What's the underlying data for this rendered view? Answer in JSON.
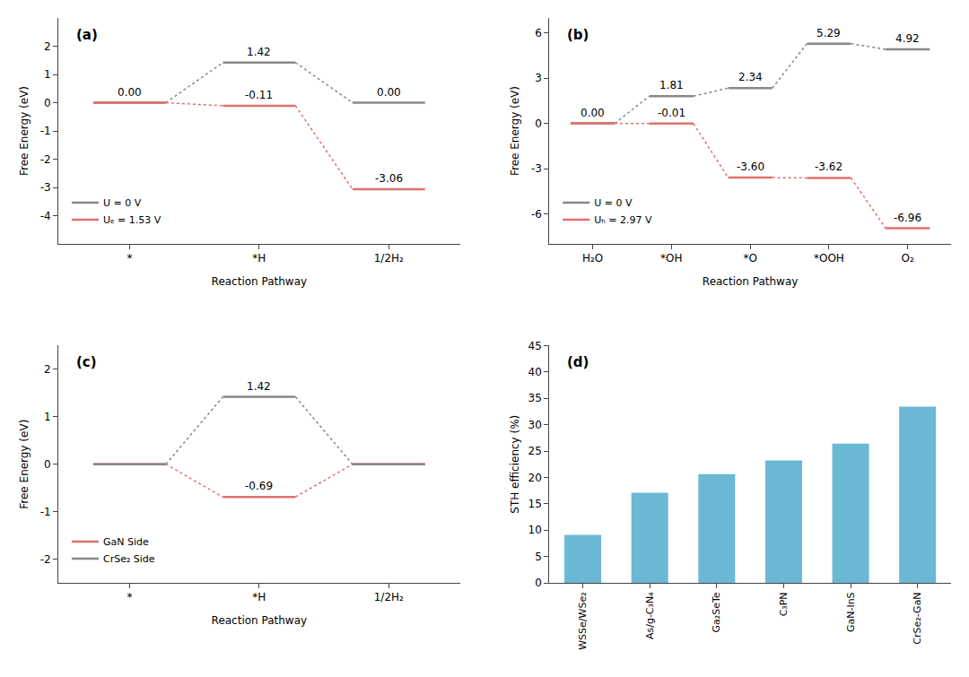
{
  "chart_data": [
    {
      "type": "levels",
      "title": "(a)",
      "xlabel": "Reaction Pathway",
      "ylabel": "Free Energy (eV)",
      "categories": [
        "*",
        "*H",
        "1/2H₂"
      ],
      "series": [
        {
          "name": "U = 0 V",
          "color": "#888888",
          "values": [
            0.0,
            1.42,
            0.0
          ],
          "value_labels": [
            "0.00",
            "1.42",
            "0.00"
          ]
        },
        {
          "name": "Uₑ = 1.53 V",
          "color": "#E07070",
          "values": [
            0.0,
            -0.11,
            -3.06
          ],
          "value_labels": [
            null,
            "-0.11",
            "-3.06"
          ]
        }
      ],
      "ylim": [
        -5,
        3
      ],
      "yticks": [
        -4,
        -3,
        -2,
        -1,
        0,
        1,
        2
      ],
      "grid": false,
      "legend": "lower left",
      "data_labels": true
    },
    {
      "type": "levels",
      "title": "(b)",
      "xlabel": "Reaction Pathway",
      "ylabel": "Free Energy (eV)",
      "categories": [
        "H₂O",
        "*OH",
        "*O",
        "*OOH",
        "O₂"
      ],
      "series": [
        {
          "name": "U = 0 V",
          "color": "#888888",
          "values": [
            0.0,
            1.81,
            2.34,
            5.29,
            4.92
          ],
          "value_labels": [
            "0.00",
            "1.81",
            "2.34",
            "5.29",
            "4.92"
          ]
        },
        {
          "name": "Uₕ = 2.97 V",
          "color": "#E07070",
          "values": [
            0.0,
            -0.01,
            -3.6,
            -3.62,
            -6.96
          ],
          "value_labels": [
            null,
            "-0.01",
            "-3.60",
            "-3.62",
            "-6.96"
          ]
        }
      ],
      "ylim": [
        -8,
        7
      ],
      "yticks": [
        -6,
        -3,
        0,
        3,
        6
      ],
      "grid": false,
      "legend": "lower left",
      "data_labels": true
    },
    {
      "type": "levels",
      "title": "(c)",
      "xlabel": "Reaction Pathway",
      "ylabel": "Free Energy (eV)",
      "categories": [
        "*",
        "*H",
        "1/2H₂"
      ],
      "series": [
        {
          "name": "GaN Side",
          "color": "#E07070",
          "values": [
            0.0,
            -0.69,
            0.0
          ],
          "value_labels": [
            null,
            "-0.69",
            null
          ]
        },
        {
          "name": "CrSe₂ Side",
          "color": "#888888",
          "values": [
            0.0,
            1.42,
            0.0
          ],
          "value_labels": [
            null,
            "1.42",
            null
          ]
        }
      ],
      "ylim": [
        -2.5,
        2.5
      ],
      "yticks": [
        -2,
        -1,
        0,
        1,
        2
      ],
      "grid": false,
      "legend": "lower left",
      "data_labels": true
    },
    {
      "type": "bar",
      "title": "(d)",
      "ylabel": "STH efficiency (%)",
      "categories": [
        "WSSe/WSe₂",
        "As/g-C₃N₄",
        "Ga₂SeTe",
        "C₃PN",
        "GaN-InS",
        "CrSe₂-GaN"
      ],
      "values": [
        9.1,
        17.1,
        20.6,
        23.2,
        26.4,
        33.4
      ],
      "color": "#6BB8D4",
      "ylim": [
        0,
        45
      ],
      "yticks": [
        0,
        5,
        10,
        15,
        20,
        25,
        30,
        35,
        40,
        45
      ],
      "grid": false
    }
  ]
}
